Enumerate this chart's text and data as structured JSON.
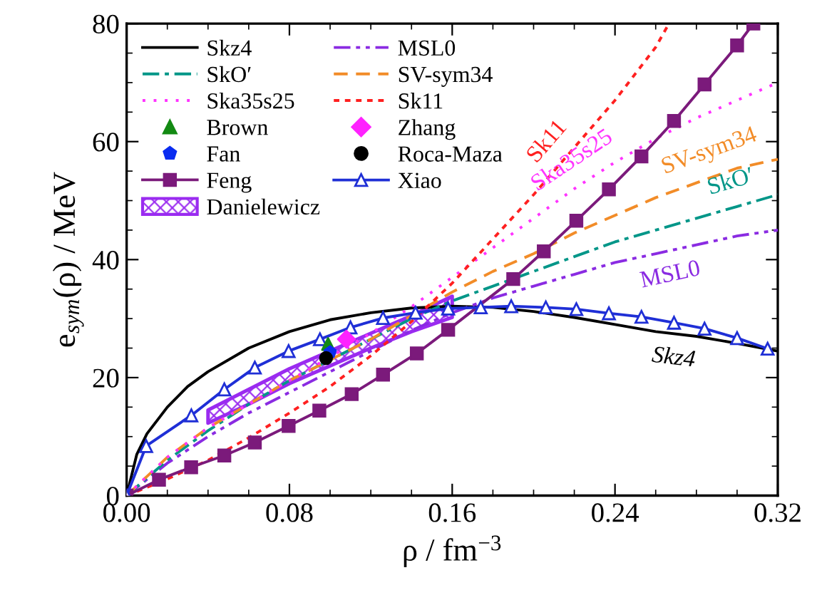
{
  "chart_data": {
    "type": "line",
    "xlabel": "ρ / fm$^{−3}$",
    "ylabel": "e$_{sym}$(ρ) / MeV",
    "xlim": [
      0,
      0.32
    ],
    "ylim": [
      0,
      80
    ],
    "xticks": [
      {
        "value": 0,
        "label": "0.00"
      },
      {
        "value": 0.08,
        "label": "0.08"
      },
      {
        "value": 0.16,
        "label": "0.16"
      },
      {
        "value": 0.24,
        "label": "0.24"
      },
      {
        "value": 0.32,
        "label": "0.32"
      }
    ],
    "yticks": [
      0,
      20,
      40,
      60,
      80
    ],
    "grid": false,
    "legend": "top left",
    "series": [
      {
        "name": "Skz4",
        "color": "#000000",
        "line_style": "solid",
        "marker": "none",
        "x": [
          0,
          0.005,
          0.01,
          0.02,
          0.03,
          0.04,
          0.06,
          0.08,
          0.1,
          0.12,
          0.14,
          0.16,
          0.18,
          0.2,
          0.22,
          0.24,
          0.26,
          0.28,
          0.3,
          0.32
        ],
        "values": [
          0,
          7,
          10.5,
          15,
          18.5,
          21,
          25,
          27.8,
          29.8,
          31,
          31.8,
          32.1,
          31.9,
          31.2,
          30.2,
          29,
          27.8,
          27,
          25.8,
          24.5
        ]
      },
      {
        "name": "MSL0",
        "color": "#8a2be2",
        "line_style": "dashdotdot",
        "marker": "none",
        "x": [
          0,
          0.02,
          0.04,
          0.06,
          0.08,
          0.1,
          0.12,
          0.14,
          0.16,
          0.18,
          0.2,
          0.22,
          0.24,
          0.26,
          0.28,
          0.3,
          0.32
        ],
        "values": [
          0,
          5.5,
          10,
          14,
          17.5,
          21,
          24.5,
          28,
          31,
          33.5,
          35.5,
          37.5,
          39.5,
          41,
          42.5,
          44,
          45
        ]
      },
      {
        "name": "SkO′",
        "color": "#009688",
        "line_style": "dashdot",
        "marker": "none",
        "x": [
          0,
          0.02,
          0.04,
          0.06,
          0.08,
          0.1,
          0.12,
          0.14,
          0.16,
          0.18,
          0.2,
          0.22,
          0.24,
          0.26,
          0.28,
          0.3,
          0.32
        ],
        "values": [
          0,
          6,
          11,
          15.5,
          19.5,
          23,
          26.5,
          30,
          33,
          35.5,
          38,
          40.5,
          43,
          45,
          47,
          49,
          51
        ]
      },
      {
        "name": "SV-sym34",
        "color": "#f28c28",
        "line_style": "dashed",
        "marker": "none",
        "x": [
          0,
          0.02,
          0.04,
          0.06,
          0.08,
          0.1,
          0.12,
          0.14,
          0.16,
          0.18,
          0.2,
          0.22,
          0.24,
          0.26,
          0.28,
          0.3,
          0.32
        ],
        "values": [
          0,
          6.5,
          11.5,
          15.5,
          19.5,
          23,
          26.5,
          30.5,
          34.5,
          38,
          41,
          44.5,
          47.5,
          50.5,
          53,
          55.5,
          57
        ]
      },
      {
        "name": "Ska35s25",
        "color": "#ff33ff",
        "line_style": "dotted",
        "marker": "none",
        "x": [
          0,
          0.02,
          0.04,
          0.06,
          0.08,
          0.1,
          0.12,
          0.14,
          0.16,
          0.18,
          0.2,
          0.22,
          0.24,
          0.26,
          0.28,
          0.3,
          0.32
        ],
        "values": [
          0,
          6.5,
          11.5,
          15.5,
          19.5,
          23.5,
          27.5,
          32,
          37,
          42,
          47,
          52,
          56.5,
          60.5,
          64,
          67,
          70
        ]
      },
      {
        "name": "Sk11",
        "color": "#ff2020",
        "line_style": "densedotted",
        "marker": "none",
        "x": [
          0,
          0.02,
          0.04,
          0.06,
          0.08,
          0.1,
          0.12,
          0.14,
          0.16,
          0.18,
          0.2,
          0.22,
          0.24,
          0.26,
          0.2665
        ],
        "values": [
          0,
          2.8,
          6,
          9.8,
          14,
          18.5,
          23.7,
          29.5,
          36,
          43.5,
          51,
          59,
          67,
          76,
          80
        ]
      },
      {
        "name": "Brown",
        "type": "scatter",
        "color": "#138a13",
        "marker": "triangle",
        "x": [
          0.099
        ],
        "values": [
          25.7
        ]
      },
      {
        "name": "Zhang",
        "type": "scatter",
        "color": "#ff22ff",
        "marker": "diamond",
        "x": [
          0.108
        ],
        "values": [
          26.5
        ]
      },
      {
        "name": "Fan",
        "type": "scatter",
        "color": "#0a2cf0",
        "x": [
          0.1
        ],
        "values": [
          24.3
        ]
      },
      {
        "name": "Roca-Maza",
        "type": "scatter",
        "color": "#000000",
        "marker": "circle",
        "x": [
          0.098
        ],
        "values": [
          23.3
        ]
      },
      {
        "name": "Feng",
        "color": "#7b1a7b",
        "line_style": "solid",
        "marker": "square",
        "x": [
          0,
          0.0159,
          0.0317,
          0.048,
          0.063,
          0.0796,
          0.0947,
          0.1106,
          0.126,
          0.1426,
          0.158,
          0.19,
          0.205,
          0.221,
          0.237,
          0.253,
          0.269,
          0.284,
          0.3,
          0.308
        ],
        "values": [
          0,
          2.7,
          4.8,
          6.8,
          9,
          11.8,
          14.4,
          17.2,
          20.5,
          24.1,
          28.1,
          36.7,
          41.4,
          46.6,
          51.9,
          57.5,
          63.5,
          69.7,
          76.3,
          80
        ]
      },
      {
        "name": "Xiao",
        "color": "#1f2fd6",
        "line_style": "solid",
        "marker": "triangle",
        "x": [
          0,
          0.0096,
          0.0318,
          0.048,
          0.063,
          0.0796,
          0.095,
          0.11,
          0.126,
          0.142,
          0.158,
          0.174,
          0.189,
          0.206,
          0.221,
          0.237,
          0.253,
          0.269,
          0.284,
          0.3,
          0.315
        ],
        "values": [
          0,
          8.4,
          13.6,
          18,
          21.7,
          24.5,
          26.5,
          28.5,
          30.1,
          31,
          31.7,
          31.9,
          32.1,
          31.9,
          31.6,
          30.9,
          30.3,
          29.3,
          28.3,
          26.7,
          24.9
        ]
      },
      {
        "name": "Danielewicz",
        "type": "area",
        "color": "#9a2bf0",
        "x": [
          0.04,
          0.06,
          0.08,
          0.1,
          0.12,
          0.14,
          0.16
        ],
        "values": [
          null,
          null,
          null,
          null,
          null,
          null,
          null
        ],
        "lower": [
          12.3,
          15.5,
          19,
          22,
          25,
          27.8,
          30.2
        ],
        "upper": [
          14.5,
          18,
          21.5,
          24.5,
          27.5,
          30.5,
          33.8
        ]
      }
    ],
    "annotations": [
      {
        "text": "Sk11",
        "x": 0.215,
        "y": 57.5
      },
      {
        "text": "Ska35s25",
        "x": 0.225,
        "y": 53.6
      },
      {
        "text": "SV-sym34",
        "x": 0.29,
        "y": 54.8
      },
      {
        "text": "SkO′",
        "x": 0.3,
        "y": 49.5
      },
      {
        "text": "MSL0",
        "x": 0.265,
        "y": 40.9
      },
      {
        "text": "Skz4",
        "x": 0.27,
        "y": 26.9
      }
    ]
  }
}
